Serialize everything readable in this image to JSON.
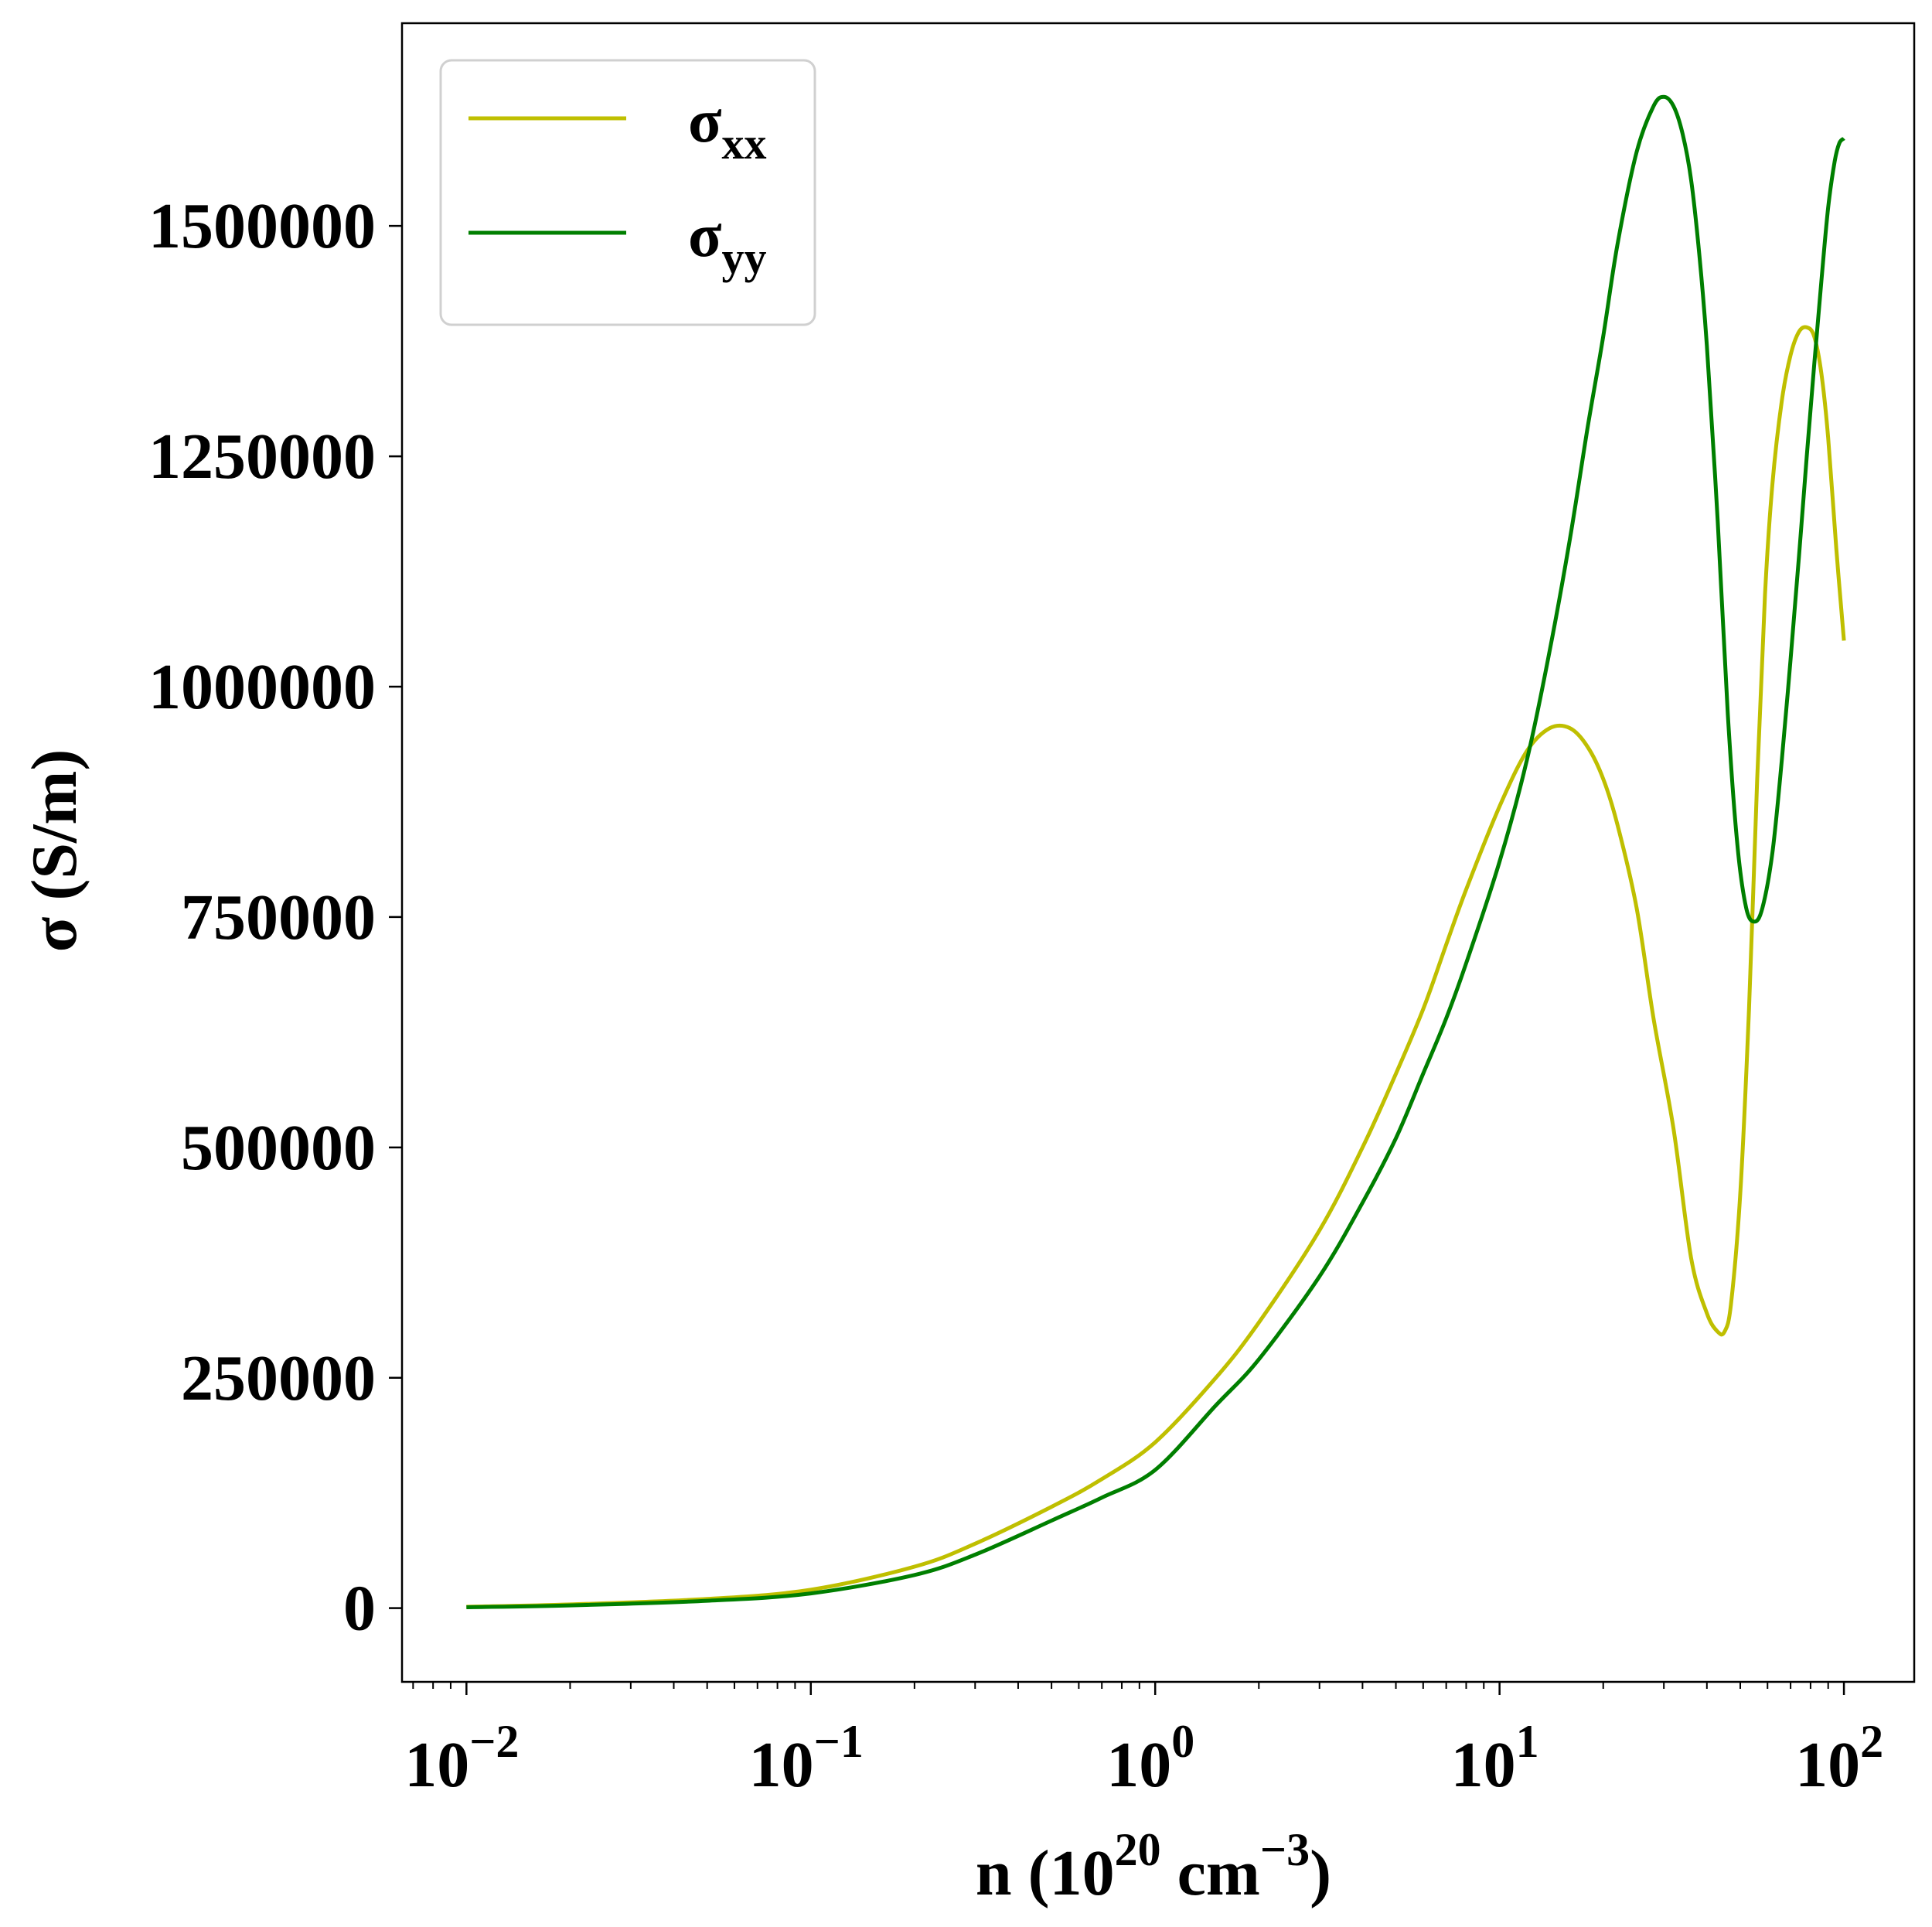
{
  "chart_data": {
    "type": "line",
    "title": "",
    "xlabel": {
      "base": "n (10",
      "sup1": "20",
      "mid": " cm",
      "sup2": "−3",
      "end": ")"
    },
    "ylabel": "σ (S/m)",
    "xscale": "log",
    "xlim": [
      0.0065,
      160
    ],
    "ylim": [
      -80000,
      1720000
    ],
    "grid": false,
    "legend_position": "top-left",
    "x_ticks": [
      {
        "value": 0.01,
        "base": "10",
        "exp": "−2"
      },
      {
        "value": 0.1,
        "base": "10",
        "exp": "−1"
      },
      {
        "value": 1,
        "base": "10",
        "exp": "0"
      },
      {
        "value": 10,
        "base": "10",
        "exp": "1"
      },
      {
        "value": 100,
        "base": "10",
        "exp": "2"
      }
    ],
    "y_ticks": [
      {
        "value": 0,
        "label": "0"
      },
      {
        "value": 250000,
        "label": "250000"
      },
      {
        "value": 500000,
        "label": "500000"
      },
      {
        "value": 750000,
        "label": "750000"
      },
      {
        "value": 1000000,
        "label": "1000000"
      },
      {
        "value": 1250000,
        "label": "1250000"
      },
      {
        "value": 1500000,
        "label": "1500000"
      }
    ],
    "series": [
      {
        "name": "σ",
        "subscript": "xx",
        "color": "#bfbf00",
        "x": [
          0.01,
          0.02,
          0.05,
          0.1,
          0.2,
          0.3,
          0.5,
          0.7,
          1,
          1.5,
          2,
          3,
          4,
          5,
          6,
          7,
          8,
          10,
          12,
          14,
          16,
          18,
          20,
          22,
          25,
          28,
          32,
          36,
          40,
          43,
          45,
          47,
          50,
          53,
          56,
          59,
          62,
          66,
          70,
          74,
          78,
          82,
          86,
          90,
          95,
          100
        ],
        "values": [
          1500,
          4000,
          10000,
          20000,
          45000,
          70000,
          110000,
          140000,
          180000,
          250000,
          310000,
          410000,
          500000,
          580000,
          650000,
          720000,
          780000,
          870000,
          930000,
          955000,
          955000,
          935000,
          900000,
          850000,
          760000,
          640000,
          520000,
          380000,
          320000,
          300000,
          300000,
          330000,
          450000,
          650000,
          900000,
          1100000,
          1220000,
          1310000,
          1360000,
          1385000,
          1390000,
          1380000,
          1340000,
          1270000,
          1150000,
          1050000
        ]
      },
      {
        "name": "σ",
        "subscript": "yy",
        "color": "#007f00",
        "x": [
          0.01,
          0.02,
          0.05,
          0.1,
          0.2,
          0.3,
          0.5,
          0.7,
          1,
          1.5,
          2,
          3,
          4,
          5,
          6,
          7,
          8,
          10,
          12,
          14,
          16,
          18,
          20,
          22,
          25,
          28,
          30,
          32,
          34,
          36,
          38,
          40,
          43,
          46,
          49,
          52,
          55,
          58,
          62,
          66,
          70,
          74,
          78,
          82,
          86,
          90,
          94,
          97,
          100
        ],
        "values": [
          1000,
          3000,
          8000,
          16000,
          36000,
          58000,
          95000,
          120000,
          150000,
          220000,
          270000,
          360000,
          440000,
          510000,
          580000,
          640000,
          700000,
          810000,
          920000,
          1040000,
          1160000,
          1280000,
          1380000,
          1480000,
          1580000,
          1630000,
          1640000,
          1630000,
          1600000,
          1550000,
          1470000,
          1370000,
          1180000,
          970000,
          830000,
          760000,
          745000,
          760000,
          820000,
          920000,
          1030000,
          1140000,
          1250000,
          1350000,
          1440000,
          1520000,
          1570000,
          1590000,
          1595000
        ]
      }
    ]
  }
}
